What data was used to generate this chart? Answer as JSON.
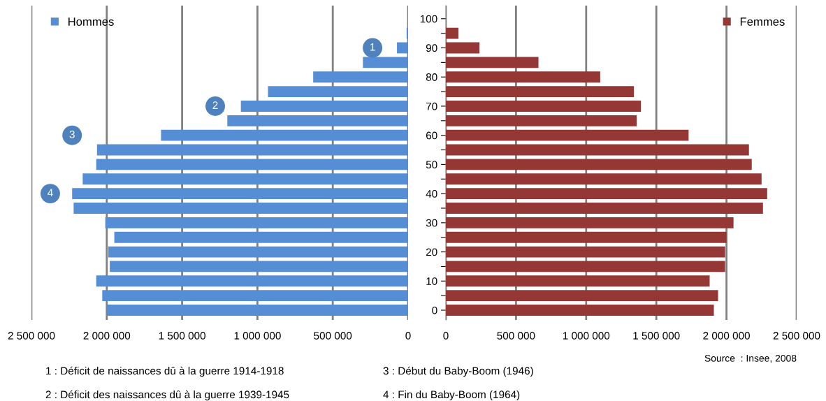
{
  "chart_data": [
    {
      "type": "bar",
      "orientation": "horizontal",
      "categories": [
        "100",
        null,
        "90",
        null,
        "80",
        null,
        "70",
        null,
        "60",
        null,
        "50",
        null,
        "40",
        null,
        "30",
        null,
        "20",
        null,
        "10",
        null,
        "0"
      ],
      "series": [
        {
          "name": "Hommes",
          "color": "#558ed5",
          "values": [
            null,
            10000,
            74000,
            300000,
            630000,
            930000,
            1110000,
            1200000,
            1640000,
            2065000,
            2070000,
            2160000,
            2230000,
            2220000,
            2010000,
            1950000,
            1990000,
            1980000,
            2070000,
            2030000,
            2000000
          ]
        }
      ],
      "xlim": [
        2500000,
        0
      ],
      "xticks": [
        {
          "value": 2500000,
          "label": "2 500 000"
        },
        {
          "value": 2000000,
          "label": "2 000 000"
        },
        {
          "value": 1500000,
          "label": "1 500 000"
        },
        {
          "value": 1000000,
          "label": "1 000 000"
        },
        {
          "value": 500000,
          "label": "500 000"
        },
        0
      ],
      "tick_labels": "x",
      "grid": "x",
      "legend": "top left",
      "annotations": [
        {
          "text": "1",
          "x": 236000,
          "y": "90"
        },
        {
          "text": "2",
          "x": 1280000,
          "y": "70"
        },
        {
          "text": "3",
          "x": 2230000,
          "y": "60"
        },
        {
          "text": "4",
          "x": 2375000,
          "y": "40"
        },
        "1 : Déficit de naissances dû à la guerre 1914-1918",
        "2 : Déficit des naissances dû à la guerre 1939-1945",
        "3 : Début du Baby-Boom (1946)",
        "4 : Fin du Baby-Boom (1964)"
      ]
    },
    {
      "type": "bar",
      "orientation": "horizontal",
      "categories": [
        "100",
        null,
        "90",
        null,
        "80",
        null,
        "70",
        null,
        "60",
        null,
        "50",
        null,
        "40",
        null,
        "30",
        null,
        "20",
        null,
        "10",
        null,
        "0"
      ],
      "series": [
        {
          "name": "Femmes",
          "color": "#953735",
          "values": [
            null,
            90000,
            240000,
            660000,
            1100000,
            1340000,
            1390000,
            1360000,
            1730000,
            2160000,
            2180000,
            2250000,
            2290000,
            2260000,
            2050000,
            2000000,
            1990000,
            1990000,
            1880000,
            1940000,
            1910000
          ]
        }
      ],
      "xlim": [
        0,
        2500000
      ],
      "xticks": [
        0,
        {
          "value": 500000,
          "label": "500 000"
        },
        {
          "value": 1000000,
          "label": "1 000 000"
        },
        {
          "value": 1500000,
          "label": "1 500 000"
        },
        {
          "value": 2000000,
          "label": "2 000 000"
        },
        {
          "value": 2500000,
          "label": "2 500 000"
        }
      ],
      "grid": "x",
      "legend": "top right",
      "annotations": [
        "Source  : Insee, 2008"
      ]
    }
  ]
}
